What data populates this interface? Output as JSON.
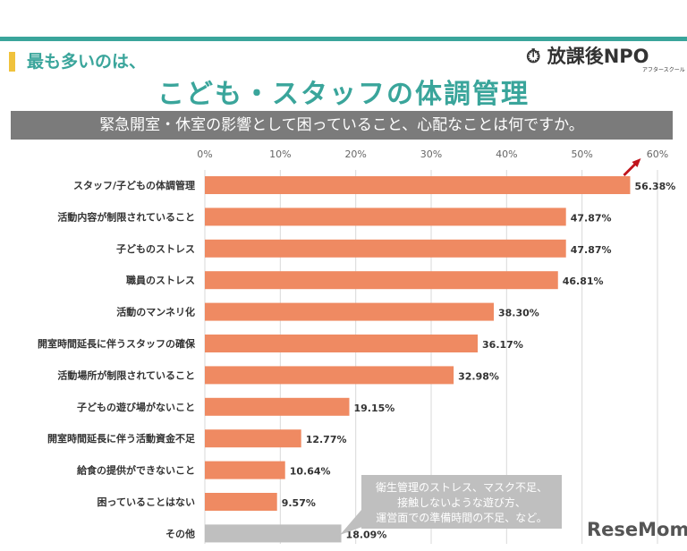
{
  "header": {
    "subtitle": "最も多いのは、",
    "title": "こども・スタッフの体調管理",
    "logo": "放課後NPO",
    "logo_sub": "アフタースクール",
    "question": "緊急開室・休室の影響として困っていること、心配なことは何ですか。"
  },
  "callout": {
    "lines": [
      "衛生管理のストレス、マスク不足、",
      "接触しないような遊び方、",
      "運営面での準備時間の不足、など。"
    ]
  },
  "watermark": "ReseMom",
  "chart_data": {
    "type": "bar",
    "orientation": "horizontal",
    "categories": [
      "スタッフ/子どもの体調管理",
      "活動内容が制限されていること",
      "子どものストレス",
      "職員のストレス",
      "活動のマンネリ化",
      "開室時間延長に伴うスタッフの確保",
      "活動場所が制限されていること",
      "子どもの遊び場がないこと",
      "開室時間延長に伴う活動資金不足",
      "給食の提供ができないこと",
      "困っていることはない",
      "その他"
    ],
    "values": [
      56.38,
      47.87,
      47.87,
      46.81,
      38.3,
      36.17,
      32.98,
      19.15,
      12.77,
      10.64,
      9.57,
      18.09
    ],
    "labels": [
      "56.38%",
      "47.87%",
      "47.87%",
      "46.81%",
      "38.30%",
      "36.17%",
      "32.98%",
      "19.15%",
      "12.77%",
      "10.64%",
      "9.57%",
      "18.09%"
    ],
    "xlim": [
      0,
      60
    ],
    "xticks": [
      "0%",
      "10%",
      "20%",
      "30%",
      "40%",
      "50%",
      "60%"
    ],
    "grid": true,
    "colors": {
      "bar": "#ef8a62",
      "other": "#bfbfbf",
      "highlight_arrow": "#c0141c"
    }
  }
}
